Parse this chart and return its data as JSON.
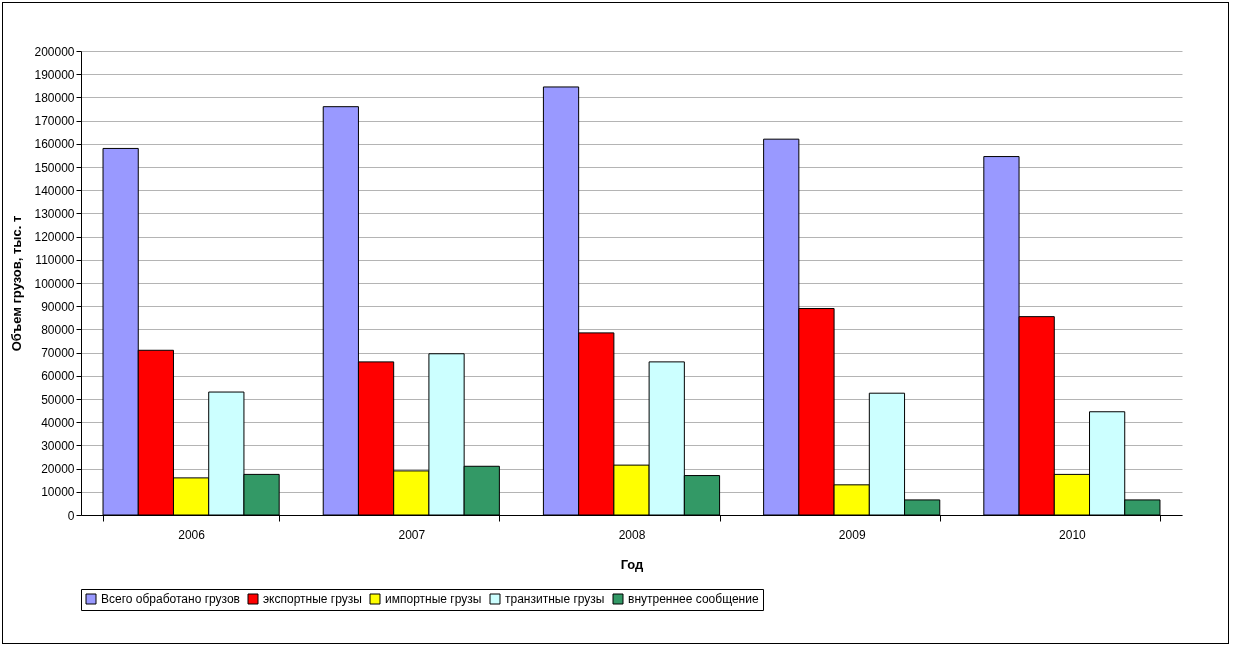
{
  "chart_data": {
    "type": "bar",
    "xlabel": "Год",
    "ylabel": "Объем грузов, тыс. т",
    "categories": [
      "2006",
      "2007",
      "2008",
      "2009",
      "2010"
    ],
    "series": [
      {
        "name": "Всего обработано грузов",
        "color": "#9999ff",
        "values": [
          158000,
          176000,
          184500,
          162000,
          154500
        ]
      },
      {
        "name": "экспортные грузы",
        "color": "#ff0000",
        "values": [
          71000,
          66000,
          78500,
          89000,
          85500
        ]
      },
      {
        "name": "импортные грузы",
        "color": "#ffff00",
        "values": [
          16000,
          19000,
          21500,
          13000,
          17500
        ]
      },
      {
        "name": "транзитные грузы",
        "color": "#ccffff",
        "values": [
          53000,
          69500,
          66000,
          52500,
          44500
        ]
      },
      {
        "name": "внутреннее сообщение",
        "color": "#339966",
        "values": [
          17500,
          21000,
          17000,
          6500,
          6500
        ]
      }
    ],
    "ylim": [
      0,
      200000
    ],
    "yticks": [
      0,
      10000,
      20000,
      30000,
      40000,
      50000,
      60000,
      70000,
      80000,
      90000,
      100000,
      110000,
      120000,
      130000,
      140000,
      150000,
      160000,
      170000,
      180000,
      190000,
      200000
    ],
    "grid": "y",
    "legend": "bottom"
  }
}
